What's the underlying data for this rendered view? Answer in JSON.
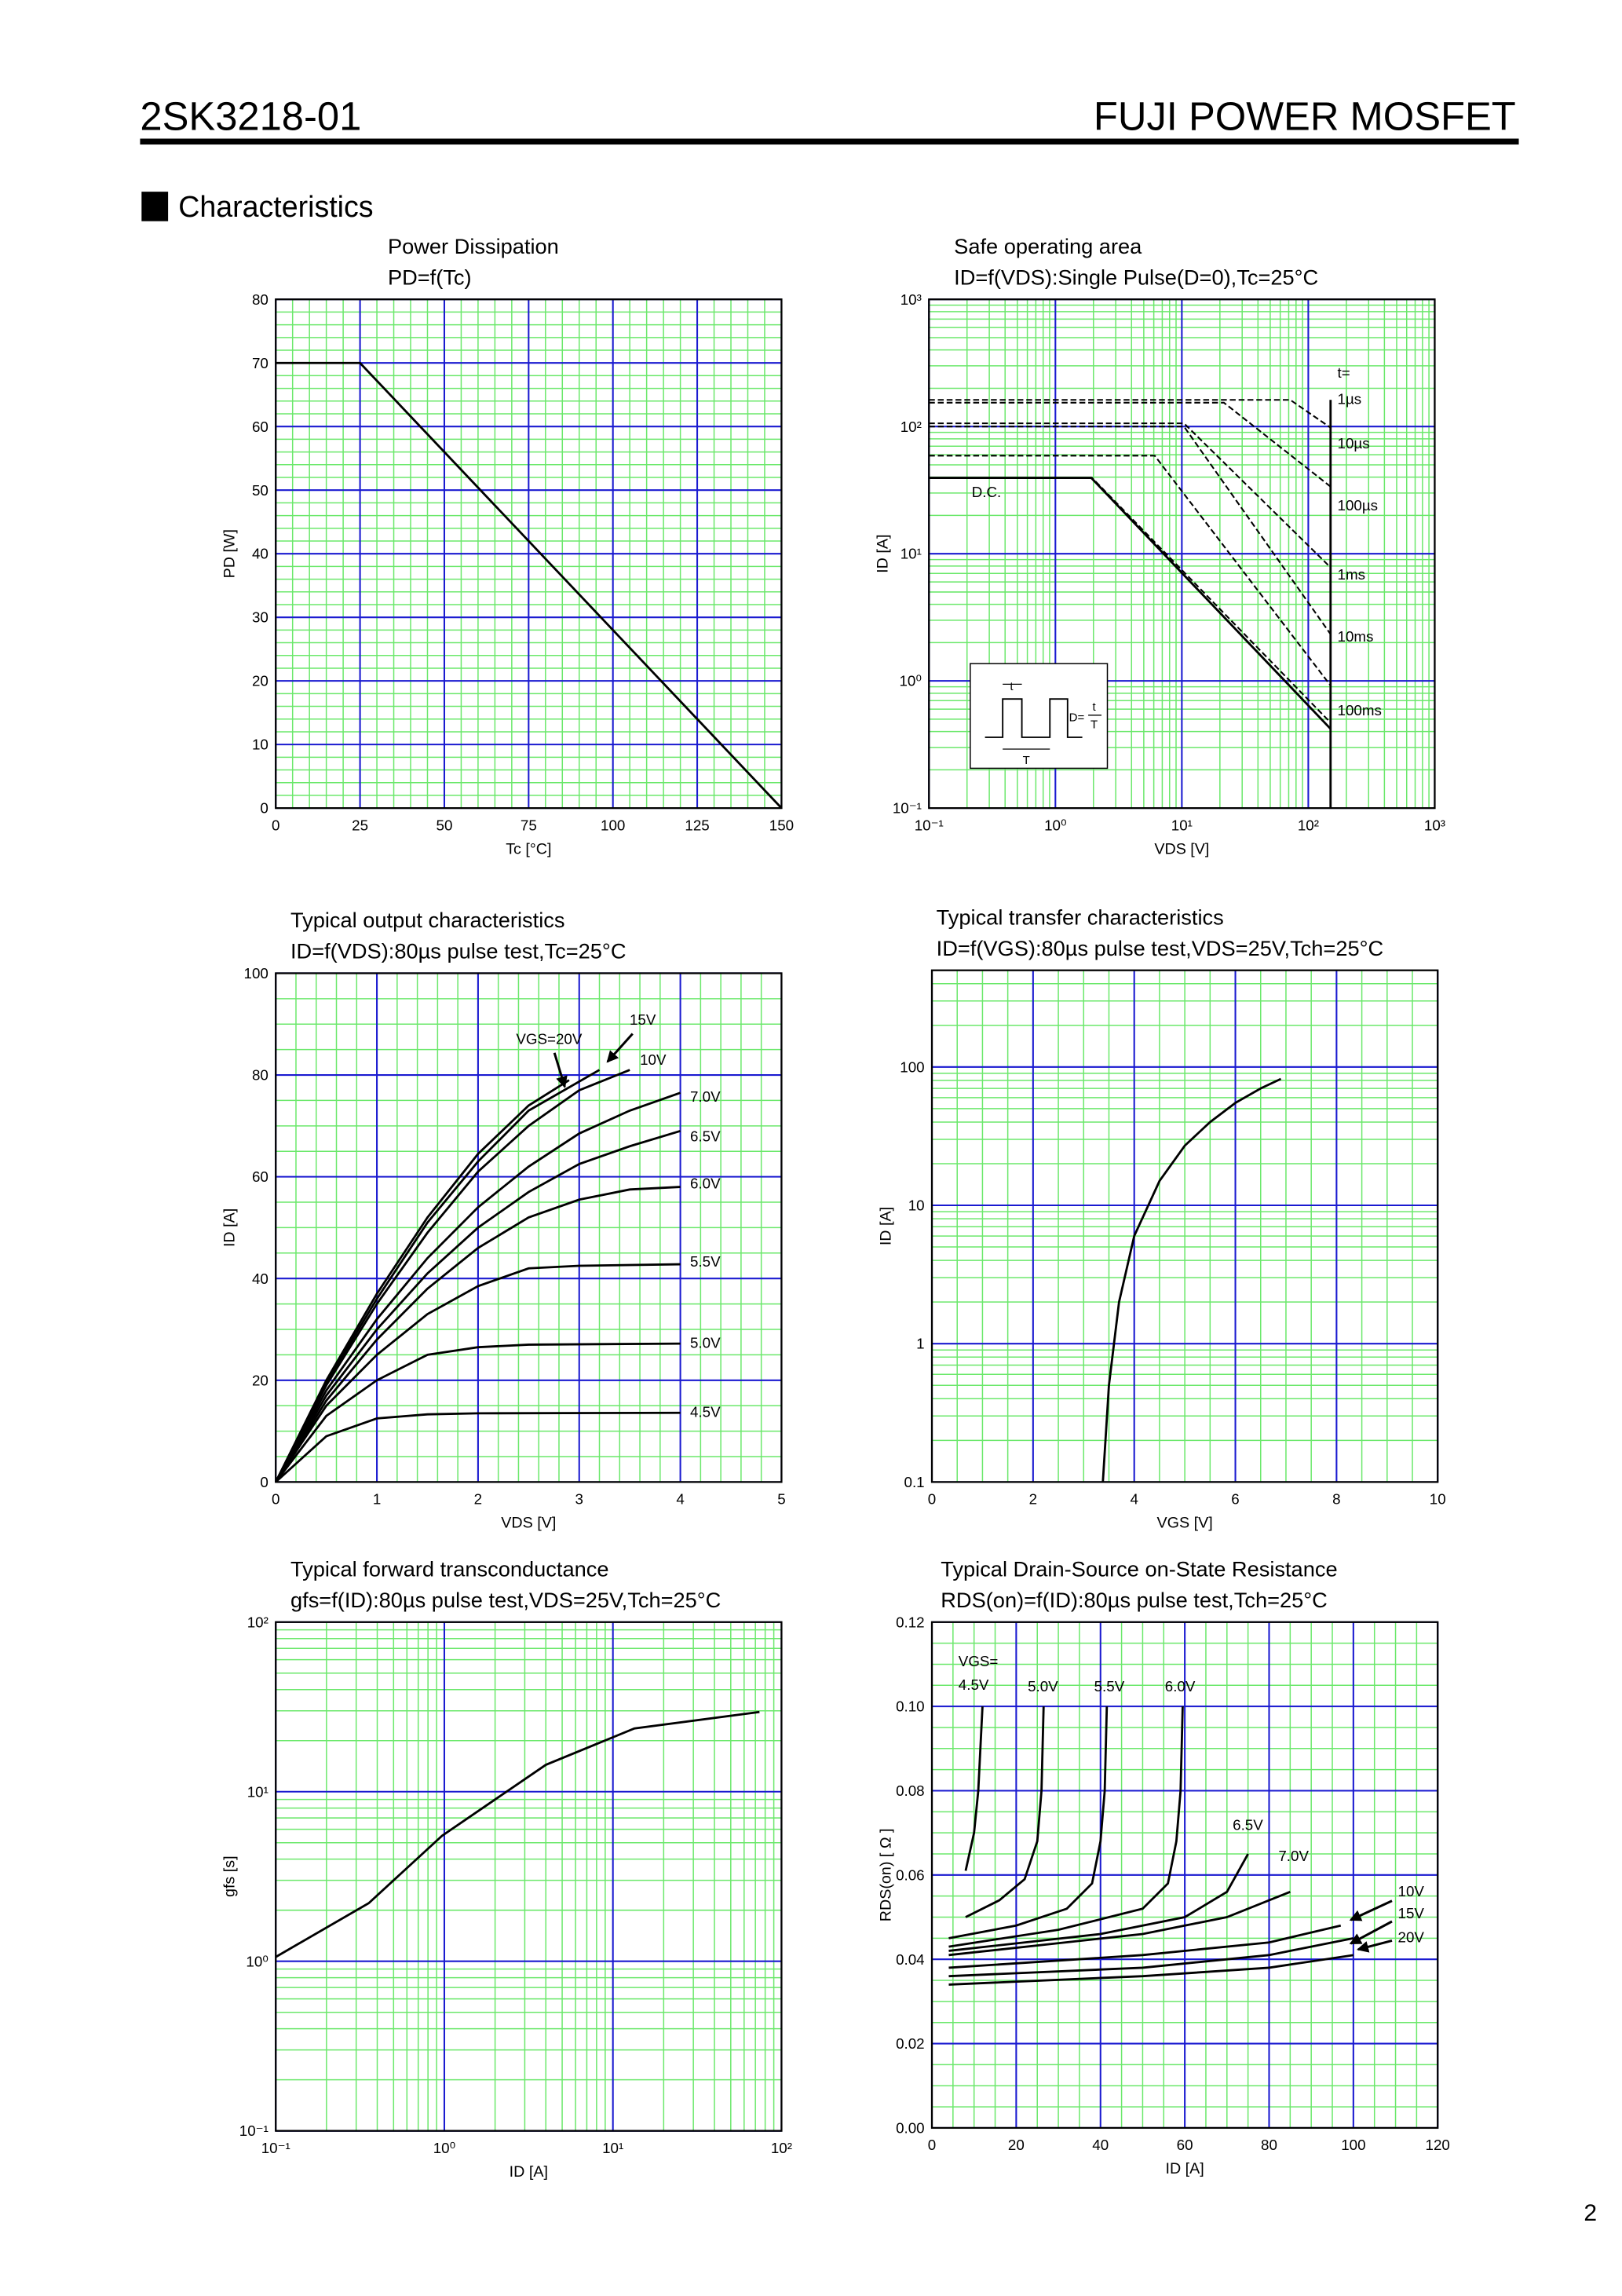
{
  "header": {
    "part_number": "2SK3218-01",
    "series": "FUJI POWER MOSFET"
  },
  "section_title": "Characteristics",
  "page_number": "2",
  "chart_data": [
    {
      "type": "line",
      "title": "Power Dissipation",
      "subtitle": "PD=f(Tc)",
      "x_label": "Tc [°C]",
      "y_label": "PD [W]",
      "xlim": [
        0,
        150
      ],
      "ylim": [
        0,
        80
      ],
      "xticks": [
        0,
        25,
        50,
        75,
        100,
        125,
        150
      ],
      "yticks": [
        0,
        10,
        20,
        30,
        40,
        50,
        60,
        70,
        80
      ],
      "grid": true,
      "series": [
        {
          "color": "#000000",
          "x": [
            0,
            25,
            150
          ],
          "values": [
            70,
            70,
            0
          ]
        }
      ]
    },
    {
      "type": "line",
      "title": "Safe operating area",
      "subtitle": "ID=f(VDS):Single Pulse(D=0),Tc=25°C",
      "x_label": "VDS [V]",
      "y_label": "ID [A]",
      "xscale": "log",
      "yscale": "log",
      "xlim": [
        0.1,
        1000
      ],
      "ylim": [
        0.1,
        1000
      ],
      "xticks": [
        {
          "value": 0.1,
          "label": "10⁻¹"
        },
        {
          "value": 1,
          "label": "10⁰"
        },
        {
          "value": 10,
          "label": "10¹"
        },
        {
          "value": 100,
          "label": "10²"
        },
        {
          "value": 1000,
          "label": "10³"
        }
      ],
      "yticks": [
        {
          "value": 0.1,
          "label": "10⁻¹"
        },
        {
          "value": 1,
          "label": "10⁰"
        },
        {
          "value": 10,
          "label": "10¹"
        },
        {
          "value": 100,
          "label": "10²"
        },
        {
          "value": 1000,
          "label": "10³"
        }
      ],
      "grid": true,
      "annotations": [
        "t="
      ],
      "inset_labels": [
        "t",
        "T",
        "D=",
        "t",
        "T"
      ],
      "series": [
        {
          "name": "1µs",
          "color": "#000000",
          "dashed": true,
          "x": [
            0.1,
            72,
            150
          ],
          "values": [
            162,
            162,
            98
          ]
        },
        {
          "name": "10µs",
          "color": "#000000",
          "dashed": true,
          "x": [
            0.1,
            21.5,
            150
          ],
          "values": [
            154,
            154,
            33.7
          ]
        },
        {
          "name": "100µs",
          "color": "#000000",
          "dashed": true,
          "x": [
            0.1,
            10.4,
            150
          ],
          "values": [
            106,
            106,
            7.8
          ]
        },
        {
          "name": "1ms",
          "color": "#000000",
          "dashed": true,
          "x": [
            0.1,
            10.4,
            150
          ],
          "values": [
            100,
            100,
            2.33
          ]
        },
        {
          "name": "10ms",
          "color": "#000000",
          "dashed": true,
          "x": [
            0.1,
            6.1,
            150
          ],
          "values": [
            59,
            59,
            0.92
          ]
        },
        {
          "name": "100ms",
          "color": "#000000",
          "dashed": true,
          "x": [
            0.1,
            1.95,
            150
          ],
          "values": [
            39.5,
            39.5,
            0.47
          ]
        },
        {
          "name": "D.C.",
          "color": "#000000",
          "x": [
            0.1,
            1.92,
            150
          ],
          "values": [
            39.5,
            39.5,
            0.42
          ]
        },
        {
          "color": "#000000",
          "x": [
            150,
            150
          ],
          "values": [
            162,
            0.1
          ]
        }
      ]
    },
    {
      "type": "line",
      "title": "Typical output characteristics",
      "subtitle": "ID=f(VDS):80µs pulse test,Tc=25°C",
      "x_label": "VDS [V]",
      "y_label": "ID [A]",
      "xlim": [
        0,
        5
      ],
      "ylim": [
        0,
        100
      ],
      "xticks": [
        0,
        1,
        2,
        3,
        4,
        5
      ],
      "yticks": [
        0,
        20,
        40,
        60,
        80,
        100
      ],
      "grid": true,
      "series": [
        {
          "name": "VGS=20V",
          "color": "#000000",
          "x": [
            0,
            0.5,
            1,
            1.5,
            2,
            2.5,
            2.9
          ],
          "values": [
            0,
            20,
            37,
            52,
            64.5,
            74,
            79
          ]
        },
        {
          "name": "15V",
          "color": "#000000",
          "x": [
            0,
            0.5,
            1,
            1.5,
            2,
            2.5,
            3.2
          ],
          "values": [
            0,
            19.5,
            36,
            51,
            63,
            73,
            81
          ]
        },
        {
          "name": "10V",
          "color": "#000000",
          "x": [
            0,
            0.5,
            1,
            1.5,
            2,
            2.5,
            3,
            3.5
          ],
          "values": [
            0,
            19,
            35,
            49,
            61,
            70,
            77,
            81
          ]
        },
        {
          "name": "7.0V",
          "color": "#000000",
          "x": [
            0,
            0.5,
            1,
            1.5,
            2,
            2.5,
            3,
            3.5,
            4
          ],
          "values": [
            0,
            18,
            32,
            44,
            54,
            62,
            68.5,
            73,
            76.5
          ]
        },
        {
          "name": "6.5V",
          "color": "#000000",
          "x": [
            0,
            0.5,
            1,
            1.5,
            2,
            2.5,
            3,
            3.5,
            4
          ],
          "values": [
            0,
            17,
            30,
            41,
            50,
            57,
            62.5,
            66,
            69
          ]
        },
        {
          "name": "6.0V",
          "color": "#000000",
          "x": [
            0,
            0.5,
            1,
            1.5,
            2,
            2.5,
            3,
            3.5,
            4
          ],
          "values": [
            0,
            16,
            28,
            38,
            46,
            52,
            55.5,
            57.5,
            58
          ]
        },
        {
          "name": "5.5V",
          "color": "#000000",
          "x": [
            0,
            0.5,
            1,
            1.5,
            2,
            2.5,
            3,
            4
          ],
          "values": [
            0,
            15,
            25,
            33,
            38.5,
            42,
            42.5,
            42.8
          ]
        },
        {
          "name": "5.0V",
          "color": "#000000",
          "x": [
            0,
            0.5,
            1,
            1.5,
            2,
            2.5,
            4
          ],
          "values": [
            0,
            13,
            20,
            25,
            26.5,
            27,
            27.2
          ]
        },
        {
          "name": "4.5V",
          "color": "#000000",
          "x": [
            0,
            0.5,
            1,
            1.5,
            2,
            4
          ],
          "values": [
            0,
            9,
            12.5,
            13.3,
            13.5,
            13.6
          ]
        }
      ]
    },
    {
      "type": "line",
      "title": "Typical transfer characteristics",
      "subtitle": "ID=f(VGS):80µs pulse test,VDS=25V,Tch=25°C",
      "x_label": "VGS [V]",
      "y_label": "ID [A]",
      "yscale": "log",
      "xlim": [
        0,
        10
      ],
      "ylim": [
        0.1,
        500
      ],
      "xticks": [
        0,
        2,
        4,
        6,
        8,
        10
      ],
      "yticks": [
        0.1,
        1,
        10,
        100
      ],
      "grid": true,
      "series": [
        {
          "color": "#000000",
          "x": [
            3.38,
            3.5,
            3.7,
            4,
            4.5,
            5,
            5.5,
            6,
            6.5,
            6.9
          ],
          "values": [
            0.1,
            0.5,
            2,
            6,
            15,
            27,
            40,
            55,
            70,
            82
          ]
        }
      ]
    },
    {
      "type": "line",
      "title": "Typical forward transconductance",
      "subtitle": "gfs=f(ID):80µs pulse test,VDS=25V,Tch=25°C",
      "x_label": "ID [A]",
      "y_label": "gfs [s]",
      "xscale": "log",
      "yscale": "log",
      "xlim": [
        0.1,
        100
      ],
      "ylim": [
        0.1,
        100
      ],
      "xticks": [
        {
          "value": 0.1,
          "label": "10⁻¹"
        },
        {
          "value": 1,
          "label": "10⁰"
        },
        {
          "value": 10,
          "label": "10¹"
        },
        {
          "value": 100,
          "label": "10²"
        }
      ],
      "yticks": [
        {
          "value": 0.1,
          "label": "10⁻¹"
        },
        {
          "value": 1,
          "label": "10⁰"
        },
        {
          "value": 10,
          "label": "10¹"
        },
        {
          "value": 100,
          "label": "10²"
        }
      ],
      "grid": true,
      "series": [
        {
          "color": "#000000",
          "x": [
            0.1,
            0.356,
            0.97,
            4,
            13.4,
            74
          ],
          "values": [
            1.06,
            2.2,
            5.5,
            14.4,
            23.6,
            29.5
          ]
        }
      ]
    },
    {
      "type": "line",
      "title": "Typical Drain-Source on-State Resistance",
      "subtitle": "RDS(on)=f(ID):80µs pulse test,Tch=25°C",
      "x_label": "ID [A]",
      "y_label": "RDS(on) [ Ω ]",
      "xlim": [
        0,
        120
      ],
      "ylim": [
        0,
        0.12
      ],
      "xticks": [
        0,
        20,
        40,
        60,
        80,
        100,
        120
      ],
      "yticks": [
        {
          "value": 0,
          "label": "0.00"
        },
        0.02,
        0.04,
        0.06,
        0.08,
        {
          "value": 0.1,
          "label": "0.10"
        },
        0.12
      ],
      "grid": true,
      "annotations": [
        "VGS="
      ],
      "series": [
        {
          "name": "4.5V",
          "color": "#000000",
          "x": [
            8,
            10,
            11,
            12
          ],
          "values": [
            0.061,
            0.07,
            0.08,
            0.1
          ]
        },
        {
          "name": "5.0V",
          "color": "#000000",
          "x": [
            8,
            16,
            22,
            25,
            26,
            26.5
          ],
          "values": [
            0.05,
            0.054,
            0.059,
            0.068,
            0.08,
            0.1
          ]
        },
        {
          "name": "5.5V",
          "color": "#000000",
          "x": [
            4,
            20,
            32,
            38,
            40,
            41,
            41.5
          ],
          "values": [
            0.045,
            0.048,
            0.052,
            0.058,
            0.068,
            0.08,
            0.1
          ]
        },
        {
          "name": "6.0V",
          "color": "#000000",
          "x": [
            4,
            30,
            50,
            56,
            58,
            59,
            59.5
          ],
          "values": [
            0.043,
            0.047,
            0.052,
            0.058,
            0.068,
            0.08,
            0.1
          ]
        },
        {
          "name": "6.5V",
          "color": "#000000",
          "x": [
            4,
            40,
            60,
            70,
            75
          ],
          "values": [
            0.042,
            0.046,
            0.05,
            0.056,
            0.065
          ]
        },
        {
          "name": "7.0V",
          "color": "#000000",
          "x": [
            4,
            50,
            70,
            85
          ],
          "values": [
            0.041,
            0.046,
            0.05,
            0.056
          ]
        },
        {
          "name": "10V",
          "color": "#000000",
          "x": [
            4,
            50,
            80,
            97
          ],
          "values": [
            0.038,
            0.041,
            0.044,
            0.048
          ]
        },
        {
          "name": "15V",
          "color": "#000000",
          "x": [
            4,
            50,
            80,
            100
          ],
          "values": [
            0.036,
            0.038,
            0.041,
            0.045
          ]
        },
        {
          "name": "20V",
          "color": "#000000",
          "x": [
            4,
            50,
            80,
            100
          ],
          "values": [
            0.034,
            0.036,
            0.038,
            0.041
          ]
        }
      ]
    }
  ]
}
